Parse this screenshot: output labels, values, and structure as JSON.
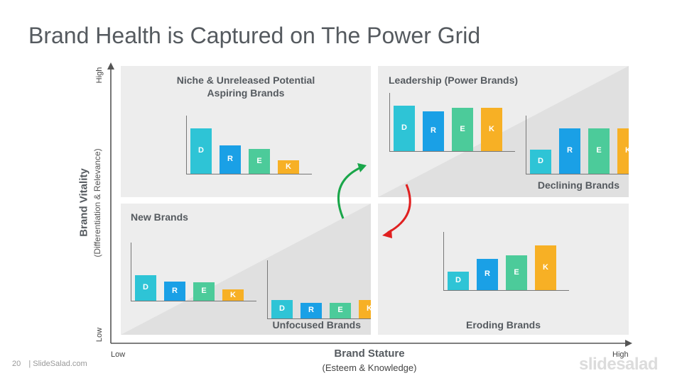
{
  "slide": {
    "title": "Brand Health is Captured on The Power Grid",
    "page_number": "20",
    "footer_text": "| SlideSalad.com",
    "brandmark": "slidesalad"
  },
  "axes": {
    "y_title": "Brand Vitality",
    "y_subtitle": "(Differentiation & Relevance)",
    "y_high": "High",
    "y_low": "Low",
    "x_title": "Brand Stature",
    "x_subtitle": "(Esteem & Knowledge)",
    "x_low": "Low",
    "x_high": "High"
  },
  "colors": {
    "D": "#2ec4d6",
    "R": "#1aa0e6",
    "E": "#4ccb9a",
    "K": "#f7b025",
    "quadrant_bg": "#ededed",
    "triangle": "#e2e2e2",
    "arrow_up": "#1aa64a",
    "arrow_down": "#e02020"
  },
  "quadrants": {
    "niche": {
      "label_line1": "Niche & Unreleased Potential",
      "label_line2": "Aspiring Brands",
      "bars": [
        {
          "letter": "D",
          "value": 80
        },
        {
          "letter": "R",
          "value": 50
        },
        {
          "letter": "E",
          "value": 44
        },
        {
          "letter": "K",
          "value": 24
        }
      ]
    },
    "leadership": {
      "label": "Leadership (Power Brands)",
      "bars": [
        {
          "letter": "D",
          "value": 80
        },
        {
          "letter": "R",
          "value": 70
        },
        {
          "letter": "E",
          "value": 76
        },
        {
          "letter": "K",
          "value": 76
        }
      ]
    },
    "declining": {
      "label": "Declining Brands",
      "bars": [
        {
          "letter": "D",
          "value": 43
        },
        {
          "letter": "R",
          "value": 80
        },
        {
          "letter": "E",
          "value": 80
        },
        {
          "letter": "K",
          "value": 80
        }
      ]
    },
    "new": {
      "label": "New Brands",
      "bars": [
        {
          "letter": "D",
          "value": 45
        },
        {
          "letter": "R",
          "value": 34
        },
        {
          "letter": "E",
          "value": 32
        },
        {
          "letter": "K",
          "value": 20
        }
      ]
    },
    "unfocused": {
      "label": "Unfocused Brands",
      "bars": [
        {
          "letter": "D",
          "value": 32
        },
        {
          "letter": "R",
          "value": 28
        },
        {
          "letter": "E",
          "value": 28
        },
        {
          "letter": "K",
          "value": 32
        }
      ]
    },
    "eroding": {
      "label": "Eroding Brands",
      "bars": [
        {
          "letter": "D",
          "value": 32
        },
        {
          "letter": "R",
          "value": 55
        },
        {
          "letter": "E",
          "value": 61
        },
        {
          "letter": "K",
          "value": 79
        }
      ]
    }
  }
}
